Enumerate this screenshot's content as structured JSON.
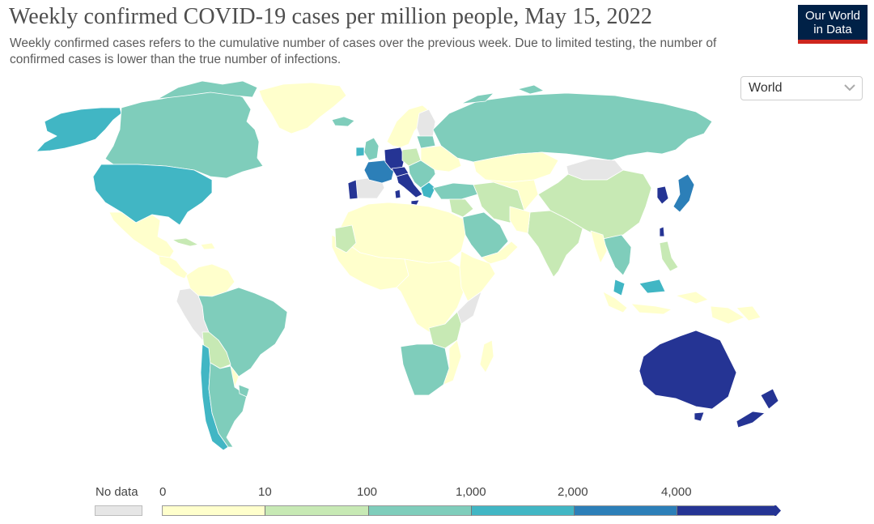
{
  "title": "Weekly confirmed COVID-19 cases per million people, May 15, 2022",
  "subtitle": "Weekly confirmed cases refers to the cumulative number of cases over the previous week. Due to limited testing, the number of confirmed cases is lower than the true number of infections.",
  "logo": {
    "line1": "Our World",
    "line2": "in Data"
  },
  "region_select": {
    "value": "World"
  },
  "colors": {
    "no_data": "#e6e6e6",
    "bin0": "#ffffcc",
    "bin1": "#c7e9b4",
    "bin2": "#7fcdbb",
    "bin3": "#41b6c4",
    "bin4": "#2c7fb8",
    "bin5": "#253494"
  },
  "legend": {
    "no_data_label": "No data",
    "ticks": [
      "0",
      "10",
      "100",
      "1,000",
      "2,000",
      "4,000"
    ]
  }
}
